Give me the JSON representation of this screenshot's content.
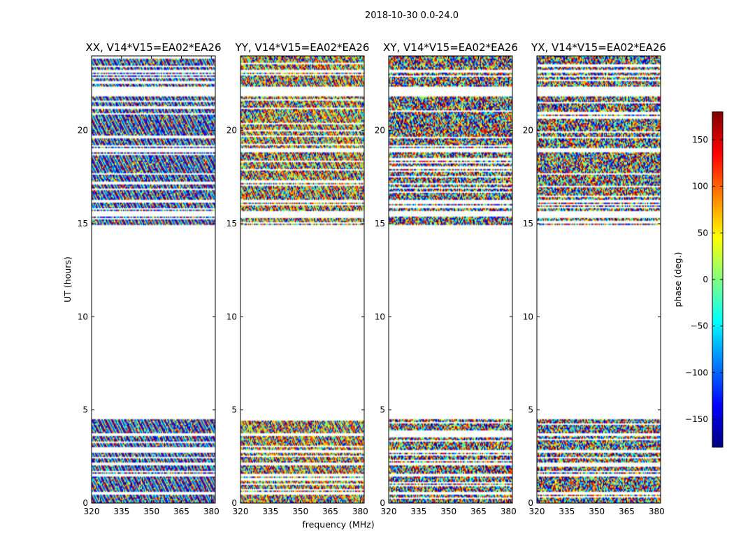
{
  "chart_data": {
    "type": "heatmap",
    "suptitle": "2018-10-30 0.0-24.0",
    "xlabel": "frequency (MHz)",
    "ylabel": "UT (hours)",
    "xlim": [
      320,
      382
    ],
    "ylim": [
      0,
      24
    ],
    "xticks": [
      320,
      335,
      350,
      365,
      380
    ],
    "yticks": [
      0,
      5,
      10,
      15,
      20
    ],
    "panels": [
      {
        "title": "XX, V14*V15=EA02*EA26",
        "fringe_strength": 0.75,
        "dominant_phase_deg": 60
      },
      {
        "title": "YY, V14*V15=EA02*EA26",
        "fringe_strength": 0.55,
        "dominant_phase_deg": -100
      },
      {
        "title": "XY, V14*V15=EA02*EA26",
        "fringe_strength": 0.25,
        "dominant_phase_deg": 0
      },
      {
        "title": "YX, V14*V15=EA02*EA26",
        "fringe_strength": 0.2,
        "dominant_phase_deg": 0
      }
    ],
    "data_time_ranges_hours": [
      [
        0.0,
        4.5
      ],
      [
        14.9,
        24.0
      ]
    ],
    "flagged_gaps_hours": [
      [
        4.5,
        14.9
      ],
      [
        0.45,
        0.6
      ],
      [
        1.42,
        1.55
      ],
      [
        2.05,
        2.15
      ],
      [
        2.7,
        2.85
      ],
      [
        3.6,
        3.75
      ],
      [
        15.4,
        15.65
      ],
      [
        16.1,
        16.25
      ],
      [
        18.85,
        19.05
      ],
      [
        21.8,
        22.35
      ],
      [
        23.1,
        23.25
      ]
    ],
    "colorbar": {
      "label": "phase (deg.)",
      "range": [
        -180,
        180
      ],
      "ticks": [
        150,
        100,
        50,
        0,
        -50,
        -100,
        -150
      ],
      "tick_labels": [
        "150",
        "100",
        "50",
        "0",
        "−50",
        "−100",
        "−150"
      ],
      "colormap": "jet"
    }
  }
}
